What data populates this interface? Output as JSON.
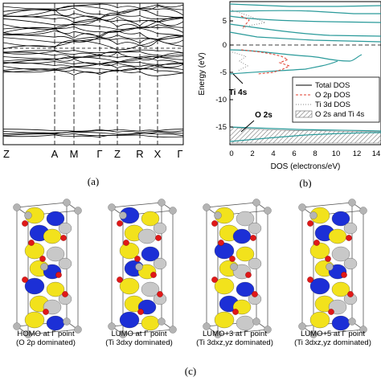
{
  "panel_a": {
    "label": "(a)",
    "kpoints": [
      "Z",
      "A",
      "M",
      "Γ",
      "Z",
      "R",
      "X",
      "Γ"
    ]
  },
  "panel_b": {
    "label": "(b)",
    "ylabel": "Energy (eV)",
    "xlabel": "DOS (electrons/eV)",
    "yticks": [
      "5",
      "0",
      "-5",
      "-10",
      "-15"
    ],
    "xticks": [
      "0",
      "2",
      "4",
      "6",
      "8",
      "10",
      "12",
      "14"
    ],
    "annotations": {
      "ti4s": "Ti 4s",
      "o2s": "O 2s"
    },
    "legend": [
      "Total DOS",
      "O 2p DOS",
      "Ti 3d DOS",
      "O 2s and Ti 4s"
    ],
    "colors": {
      "total": "#2a9a9a",
      "o2p": "#e03c2c",
      "ti3d": "#888888",
      "hatch": "#777777"
    }
  },
  "panel_c": {
    "label": "(c)",
    "orbitals": [
      {
        "line1": "HOMO at Γ point",
        "line2": "(O 2p dominated)"
      },
      {
        "line1": "LUMO at Γ point",
        "line2": "(Ti 3dxy dominated)"
      },
      {
        "line1": "LUMO+3 at Γ point",
        "line2": "(Ti 3dxz,yz dominated)"
      },
      {
        "line1": "LUMO+5 at Γ point",
        "line2": "(Ti 3dxz,yz dominated)"
      }
    ],
    "colors": {
      "lobe_yellow": "#f2e21c",
      "lobe_blue": "#1c2fd6",
      "lobe_grey": "#c8c8c8",
      "atom_red": "#e01818",
      "atom_grey": "#b4b4b4"
    }
  }
}
